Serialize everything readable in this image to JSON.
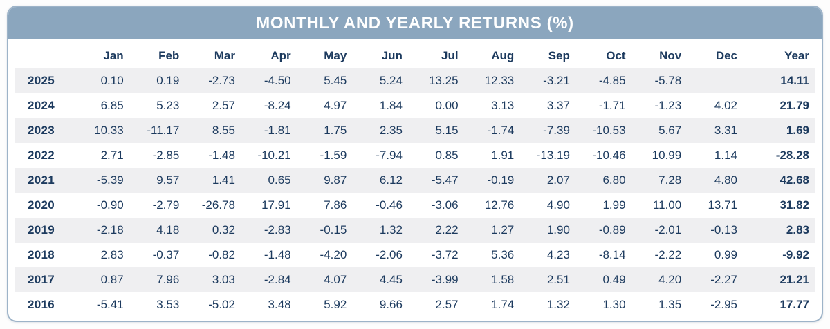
{
  "colors": {
    "header_band": "#8ba6be",
    "card_border": "#9db3c8",
    "text_navy": "#1c3a5e",
    "row_stripe": "#efeff1",
    "title_text": "#ffffff"
  },
  "table": {
    "title": "MONTHLY AND YEARLY RETURNS (%)",
    "columns": [
      "Jan",
      "Feb",
      "Mar",
      "Apr",
      "May",
      "Jun",
      "Jul",
      "Aug",
      "Sep",
      "Oct",
      "Nov",
      "Dec",
      "Year"
    ],
    "rows": [
      {
        "year": "2025",
        "values": [
          "0.10",
          "0.19",
          "-2.73",
          "-4.50",
          "5.45",
          "5.24",
          "13.25",
          "12.33",
          "-3.21",
          "-4.85",
          "-5.78",
          "",
          "14.11"
        ]
      },
      {
        "year": "2024",
        "values": [
          "6.85",
          "5.23",
          "2.57",
          "-8.24",
          "4.97",
          "1.84",
          "0.00",
          "3.13",
          "3.37",
          "-1.71",
          "-1.23",
          "4.02",
          "21.79"
        ]
      },
      {
        "year": "2023",
        "values": [
          "10.33",
          "-11.17",
          "8.55",
          "-1.81",
          "1.75",
          "2.35",
          "5.15",
          "-1.74",
          "-7.39",
          "-10.53",
          "5.67",
          "3.31",
          "1.69"
        ]
      },
      {
        "year": "2022",
        "values": [
          "2.71",
          "-2.85",
          "-1.48",
          "-10.21",
          "-1.59",
          "-7.94",
          "0.85",
          "1.91",
          "-13.19",
          "-10.46",
          "10.99",
          "1.14",
          "-28.28"
        ]
      },
      {
        "year": "2021",
        "values": [
          "-5.39",
          "9.57",
          "1.41",
          "0.65",
          "9.87",
          "6.12",
          "-5.47",
          "-0.19",
          "2.07",
          "6.80",
          "7.28",
          "4.80",
          "42.68"
        ]
      },
      {
        "year": "2020",
        "values": [
          "-0.90",
          "-2.79",
          "-26.78",
          "17.91",
          "7.86",
          "-0.46",
          "-3.06",
          "12.76",
          "4.90",
          "1.99",
          "11.00",
          "13.71",
          "31.82"
        ]
      },
      {
        "year": "2019",
        "values": [
          "-2.18",
          "4.18",
          "0.32",
          "-2.83",
          "-0.15",
          "1.32",
          "2.22",
          "1.27",
          "1.90",
          "-0.89",
          "-2.01",
          "-0.13",
          "2.83"
        ]
      },
      {
        "year": "2018",
        "values": [
          "2.83",
          "-0.37",
          "-0.82",
          "-1.48",
          "-4.20",
          "-2.06",
          "-3.72",
          "5.36",
          "4.23",
          "-8.14",
          "-2.22",
          "0.99",
          "-9.92"
        ]
      },
      {
        "year": "2017",
        "values": [
          "0.87",
          "7.96",
          "3.03",
          "-2.84",
          "4.07",
          "4.45",
          "-3.99",
          "1.58",
          "2.51",
          "0.49",
          "4.20",
          "-2.27",
          "21.21"
        ]
      },
      {
        "year": "2016",
        "values": [
          "-5.41",
          "3.53",
          "-5.02",
          "3.48",
          "5.92",
          "9.66",
          "2.57",
          "1.74",
          "1.32",
          "1.30",
          "1.35",
          "-2.95",
          "17.77"
        ]
      }
    ]
  },
  "chart_data": {
    "type": "table",
    "title": "MONTHLY AND YEARLY RETURNS (%)",
    "columns": [
      "Jan",
      "Feb",
      "Mar",
      "Apr",
      "May",
      "Jun",
      "Jul",
      "Aug",
      "Sep",
      "Oct",
      "Nov",
      "Dec",
      "Year"
    ],
    "rows": [
      {
        "year": 2025,
        "monthly": [
          0.1,
          0.19,
          -2.73,
          -4.5,
          5.45,
          5.24,
          13.25,
          12.33,
          -3.21,
          -4.85,
          -5.78,
          null
        ],
        "yearly": 14.11
      },
      {
        "year": 2024,
        "monthly": [
          6.85,
          5.23,
          2.57,
          -8.24,
          4.97,
          1.84,
          0.0,
          3.13,
          3.37,
          -1.71,
          -1.23,
          4.02
        ],
        "yearly": 21.79
      },
      {
        "year": 2023,
        "monthly": [
          10.33,
          -11.17,
          8.55,
          -1.81,
          1.75,
          2.35,
          5.15,
          -1.74,
          -7.39,
          -10.53,
          5.67,
          3.31
        ],
        "yearly": 1.69
      },
      {
        "year": 2022,
        "monthly": [
          2.71,
          -2.85,
          -1.48,
          -10.21,
          -1.59,
          -7.94,
          0.85,
          1.91,
          -13.19,
          -10.46,
          10.99,
          1.14
        ],
        "yearly": -28.28
      },
      {
        "year": 2021,
        "monthly": [
          -5.39,
          9.57,
          1.41,
          0.65,
          9.87,
          6.12,
          -5.47,
          -0.19,
          2.07,
          6.8,
          7.28,
          4.8
        ],
        "yearly": 42.68
      },
      {
        "year": 2020,
        "monthly": [
          -0.9,
          -2.79,
          -26.78,
          17.91,
          7.86,
          -0.46,
          -3.06,
          12.76,
          4.9,
          1.99,
          11.0,
          13.71
        ],
        "yearly": 31.82
      },
      {
        "year": 2019,
        "monthly": [
          -2.18,
          4.18,
          0.32,
          -2.83,
          -0.15,
          1.32,
          2.22,
          1.27,
          1.9,
          -0.89,
          -2.01,
          -0.13
        ],
        "yearly": 2.83
      },
      {
        "year": 2018,
        "monthly": [
          2.83,
          -0.37,
          -0.82,
          -1.48,
          -4.2,
          -2.06,
          -3.72,
          5.36,
          4.23,
          -8.14,
          -2.22,
          0.99
        ],
        "yearly": -9.92
      },
      {
        "year": 2017,
        "monthly": [
          0.87,
          7.96,
          3.03,
          -2.84,
          4.07,
          4.45,
          -3.99,
          1.58,
          2.51,
          0.49,
          4.2,
          -2.27
        ],
        "yearly": 21.21
      },
      {
        "year": 2016,
        "monthly": [
          -5.41,
          3.53,
          -5.02,
          3.48,
          5.92,
          9.66,
          2.57,
          1.74,
          1.32,
          1.3,
          1.35,
          -2.95
        ],
        "yearly": 17.77
      }
    ]
  }
}
